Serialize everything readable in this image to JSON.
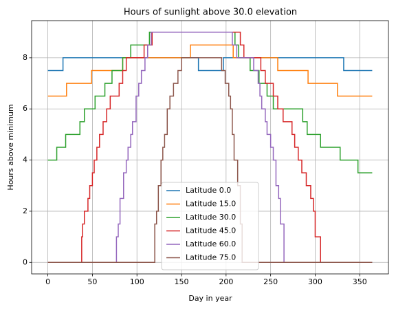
{
  "chart_data": {
    "type": "line",
    "title": "Hours of sunlight above 30.0 elevation",
    "xlabel": "Day in year",
    "ylabel": "Hours above minimum",
    "xlim": [
      -18.2,
      382.2
    ],
    "ylim": [
      -0.45,
      9.45
    ],
    "xticks": [
      0,
      50,
      100,
      150,
      200,
      250,
      300,
      350
    ],
    "yticks": [
      0,
      2,
      4,
      6,
      8
    ],
    "grid": true,
    "legend": "lower center",
    "series": [
      {
        "name": "Latitude 0.0",
        "color": "#1f77b4",
        "x": [
          0,
          17,
          169,
          197,
          332,
          364
        ],
        "values": [
          7.5,
          8,
          7.5,
          8,
          7.5,
          7.5
        ]
      },
      {
        "name": "Latitude 15.0",
        "color": "#ff7f0e",
        "x": [
          0,
          21,
          49,
          84,
          160,
          208,
          258,
          292,
          325,
          364
        ],
        "values": [
          6.5,
          7,
          7.5,
          8,
          8.5,
          8,
          7.5,
          7,
          6.5,
          6.5
        ]
      },
      {
        "name": "Latitude 30.0",
        "color": "#2ca02c",
        "x": [
          0,
          10,
          20,
          36,
          41,
          53,
          64,
          72,
          84,
          93,
          114,
          123,
          210,
          214,
          227,
          237,
          246,
          253,
          286,
          291,
          306,
          328,
          348,
          364
        ],
        "values": [
          4,
          4.5,
          5,
          5.5,
          6,
          6.5,
          7,
          7.5,
          8,
          8.5,
          9,
          9,
          8.5,
          8,
          7.5,
          7,
          6.5,
          6,
          5.5,
          5,
          4.5,
          4,
          3.5,
          3.5
        ]
      },
      {
        "name": "Latitude 45.0",
        "color": "#d62728",
        "x": [
          0,
          38,
          39,
          41,
          45,
          47,
          50,
          52,
          55,
          58,
          62,
          66,
          70,
          80,
          84,
          88,
          108,
          117,
          216,
          220,
          239,
          244,
          253,
          258,
          264,
          274,
          277,
          281,
          285,
          290,
          295,
          298,
          300,
          306,
          364
        ],
        "values": [
          0,
          1,
          1.5,
          2,
          2.5,
          3,
          3.5,
          4,
          4.5,
          5,
          5.5,
          6,
          6.5,
          7,
          7.5,
          8,
          8.5,
          9,
          8.5,
          8,
          7.5,
          7,
          6.5,
          6,
          5.5,
          5,
          4.5,
          4,
          3.5,
          3,
          2.5,
          2,
          1,
          0,
          0
        ]
      },
      {
        "name": "Latitude 60.0",
        "color": "#9467bd",
        "x": [
          0,
          77,
          79,
          81,
          85,
          88,
          90,
          93,
          95,
          99,
          102,
          105,
          109,
          112,
          116,
          207,
          212,
          231,
          236,
          238,
          240,
          244,
          246,
          250,
          253,
          256,
          259,
          261,
          265,
          364
        ],
        "values": [
          0,
          1,
          1.5,
          2.5,
          3.5,
          4,
          4.5,
          5,
          5.5,
          6.5,
          7,
          7.5,
          8,
          8.5,
          9,
          8.5,
          8,
          7.5,
          7,
          6.5,
          6,
          5.5,
          5,
          4.5,
          4,
          3,
          2.5,
          1.5,
          0,
          0
        ]
      },
      {
        "name": "Latitude 75.0",
        "color": "#8c564b",
        "x": [
          0,
          120,
          122,
          124,
          127,
          129,
          131,
          134,
          137,
          141,
          146,
          150,
          195,
          199,
          203,
          205,
          207,
          209,
          213,
          216,
          218,
          219,
          364
        ],
        "values": [
          0,
          1.5,
          2,
          3,
          4,
          4.5,
          5,
          6,
          6.5,
          7,
          7.5,
          8,
          7.5,
          7,
          6.5,
          6,
          5,
          4,
          3,
          1.5,
          0,
          0,
          0
        ]
      }
    ]
  }
}
